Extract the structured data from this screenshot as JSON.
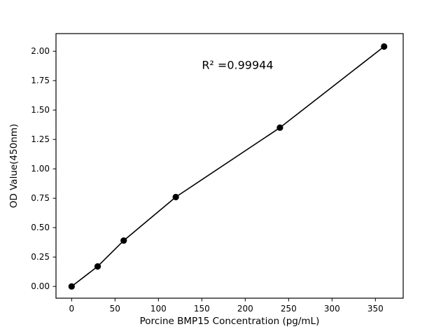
{
  "chart_data": {
    "type": "scatter",
    "title": "",
    "xlabel": "Porcine BMP15 Concentration (pg/mL)",
    "ylabel": "OD Value(450nm)",
    "x": [
      0,
      30,
      60,
      120,
      240,
      360
    ],
    "y": [
      0.0,
      0.17,
      0.39,
      0.76,
      1.35,
      2.04
    ],
    "annotation": "R² =0.99944",
    "annotation_xy": [
      150,
      1.85
    ],
    "xlim": [
      -18,
      382
    ],
    "ylim": [
      -0.1,
      2.15
    ],
    "xticks": [
      0,
      50,
      100,
      150,
      200,
      250,
      300,
      350
    ],
    "yticks": [
      0.0,
      0.25,
      0.5,
      0.75,
      1.0,
      1.25,
      1.5,
      1.75,
      2.0
    ],
    "grid": false,
    "legend": null,
    "marker_color": "#000000",
    "line_color": "#000000",
    "frame_color": "#000000",
    "background_color": "#ffffff"
  }
}
